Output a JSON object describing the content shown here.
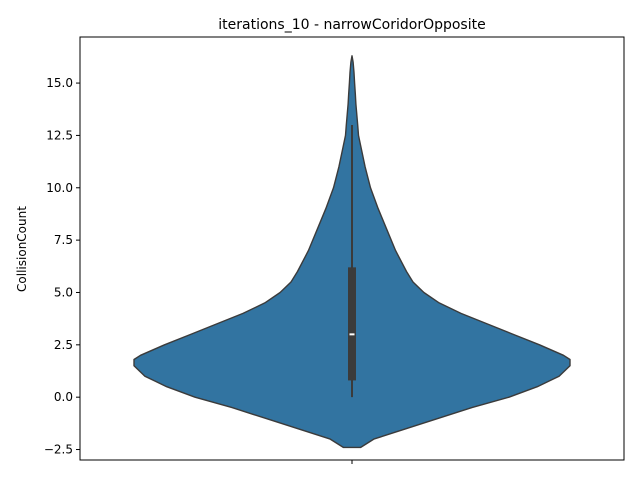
{
  "chart_data": {
    "type": "violin",
    "title": "iterations_10 - narrowCoridorOpposite",
    "xlabel": "",
    "ylabel": "CollisionCount",
    "ylim": [
      -3.0,
      17.2
    ],
    "yticks": [
      -2.5,
      0.0,
      2.5,
      5.0,
      7.5,
      10.0,
      12.5,
      15.0
    ],
    "ytick_labels": [
      "−2.5",
      "0.0",
      "2.5",
      "5.0",
      "7.5",
      "10.0",
      "12.5",
      "15.0"
    ],
    "categories": [
      ""
    ],
    "grid": false,
    "legend": "none",
    "colors": {
      "body": "#3274a1",
      "edge": "#3b3b3b",
      "box": "#3b3b3b",
      "median": "#ffffff",
      "axis": "#000000"
    },
    "density": {
      "y": [
        -2.4,
        -2.0,
        -1.5,
        -1.0,
        -0.5,
        0.0,
        0.5,
        1.0,
        1.5,
        1.8,
        2.0,
        2.5,
        3.0,
        3.5,
        4.0,
        4.5,
        5.0,
        5.5,
        6.0,
        7.0,
        8.0,
        9.0,
        10.0,
        11.0,
        12.0,
        12.5,
        13.0,
        13.5,
        14.0,
        14.5,
        15.0,
        15.5,
        16.0,
        16.3
      ],
      "width": [
        0.04,
        0.1,
        0.25,
        0.4,
        0.55,
        0.72,
        0.85,
        0.95,
        1.0,
        1.0,
        0.97,
        0.86,
        0.74,
        0.62,
        0.5,
        0.4,
        0.33,
        0.28,
        0.25,
        0.2,
        0.16,
        0.12,
        0.085,
        0.06,
        0.04,
        0.03,
        0.026,
        0.022,
        0.018,
        0.015,
        0.012,
        0.009,
        0.005,
        0.0
      ]
    },
    "box": {
      "q1": 0.8,
      "median": 3.0,
      "q3": 6.2,
      "whisker_low": 0.0,
      "whisker_high": 13.0
    }
  }
}
